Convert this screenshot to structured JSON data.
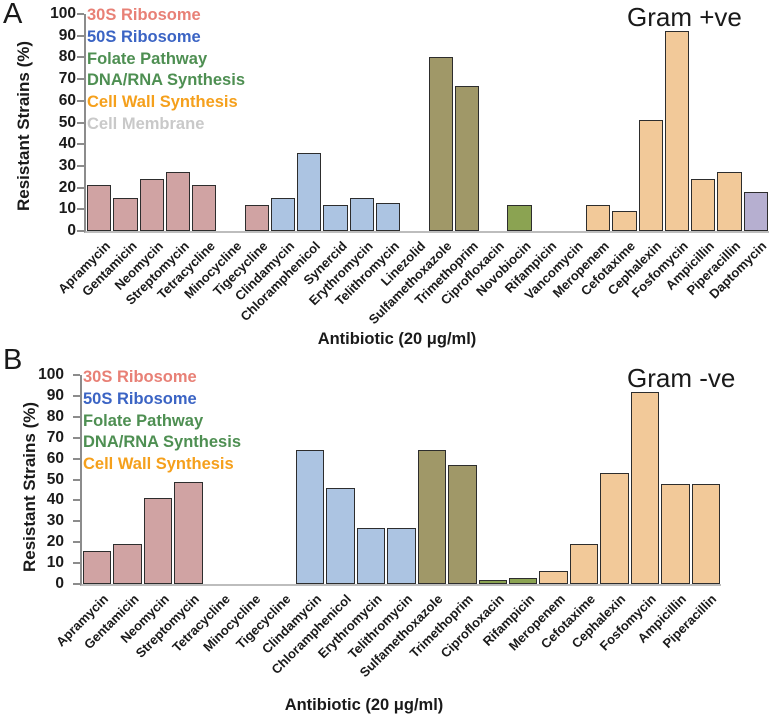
{
  "colors": {
    "bar_fill": {
      "30S Ribosome": "#d0a3a3",
      "50S Ribosome": "#acc4e2",
      "Folate Pathway": "#a09868",
      "DNA/RNA Synthesis": "#8ba352",
      "Cell Wall Synthesis": "#f2c999",
      "Cell Membrane": "#b6afd0"
    },
    "bar_border": "#2d2d2d",
    "axis": "#8c8c8c",
    "text": "#1a1a1a"
  },
  "chart_data": [
    {
      "type": "bar",
      "panel_label": "A",
      "title": "Gram +ve",
      "xlabel": "Antibiotic (20 μg/ml)",
      "ylabel": "Resistant Strains (%)",
      "ylim": [
        0,
        100
      ],
      "ytick_step": 10,
      "grid": false,
      "legend_position": "top-left",
      "legend": [
        {
          "label": "30S Ribosome",
          "color": "#e88076"
        },
        {
          "label": "50S Ribosome",
          "color": "#3b64c4"
        },
        {
          "label": "Folate Pathway",
          "color": "#4e8f52"
        },
        {
          "label": "DNA/RNA Synthesis",
          "color": "#4e8f52"
        },
        {
          "label": "Cell Wall Synthesis",
          "color": "#f5a01c"
        },
        {
          "label": "Cell Membrane",
          "color": "#c9c9c9"
        }
      ],
      "categories": [
        "Apramycin",
        "Gentamicin",
        "Neomycin",
        "Streptomycin",
        "Tetracycline",
        "Minocycline",
        "Tigecycline",
        "Clindamycin",
        "Chloramphenicol",
        "Synercid",
        "Erythromycin",
        "Telithromycin",
        "Linezolid",
        "Sulfamethoxazole",
        "Trimethoprim",
        "Ciprofloxacin",
        "Novobiocin",
        "Rifampicin",
        "Vancomycin",
        "Meropenem",
        "Cefotaxime",
        "Cephalexin",
        "Fosfomycin",
        "Ampicillin",
        "Piperacillin",
        "Daptomycin"
      ],
      "values": [
        21,
        15,
        24,
        27,
        21,
        0,
        12,
        15,
        36,
        12,
        15,
        13,
        0,
        80,
        67,
        0,
        12,
        0,
        0,
        12,
        9,
        51,
        92,
        24,
        27,
        18
      ],
      "groups": [
        "30S Ribosome",
        "30S Ribosome",
        "30S Ribosome",
        "30S Ribosome",
        "30S Ribosome",
        "30S Ribosome",
        "30S Ribosome",
        "50S Ribosome",
        "50S Ribosome",
        "50S Ribosome",
        "50S Ribosome",
        "50S Ribosome",
        "50S Ribosome",
        "Folate Pathway",
        "Folate Pathway",
        "DNA/RNA Synthesis",
        "DNA/RNA Synthesis",
        "DNA/RNA Synthesis",
        "Cell Wall Synthesis",
        "Cell Wall Synthesis",
        "Cell Wall Synthesis",
        "Cell Wall Synthesis",
        "Cell Wall Synthesis",
        "Cell Wall Synthesis",
        "Cell Wall Synthesis",
        "Cell Membrane"
      ]
    },
    {
      "type": "bar",
      "panel_label": "B",
      "title": "Gram -ve",
      "xlabel": "Antibiotic (20 μg/ml)",
      "ylabel": "Resistant Strains (%)",
      "ylim": [
        0,
        100
      ],
      "ytick_step": 10,
      "grid": false,
      "legend_position": "top-left",
      "legend": [
        {
          "label": "30S Ribosome",
          "color": "#e88076"
        },
        {
          "label": "50S Ribosome",
          "color": "#3b64c4"
        },
        {
          "label": "Folate Pathway",
          "color": "#4e8f52"
        },
        {
          "label": "DNA/RNA Synthesis",
          "color": "#4e8f52"
        },
        {
          "label": "Cell Wall Synthesis",
          "color": "#f5a01c"
        }
      ],
      "categories": [
        "Apramycin",
        "Gentamicin",
        "Neomycin",
        "Streptomycin",
        "Tetracycline",
        "Minocycline",
        "Tigecycline",
        "Clindamycin",
        "Chloramphenicol",
        "Erythromycin",
        "Telithromycin",
        "Sulfamethoxazole",
        "Trimethoprim",
        "Ciprofloxacin",
        "Rifampicin",
        "Meropenem",
        "Cefotaxime",
        "Cephalexin",
        "Fosfomycin",
        "Ampicillin",
        "Piperacillin"
      ],
      "values": [
        16,
        19,
        41,
        49,
        0,
        0,
        0,
        64,
        46,
        27,
        27,
        64,
        57,
        2,
        3,
        6,
        19,
        53,
        92,
        48,
        48
      ],
      "groups": [
        "30S Ribosome",
        "30S Ribosome",
        "30S Ribosome",
        "30S Ribosome",
        "30S Ribosome",
        "30S Ribosome",
        "30S Ribosome",
        "50S Ribosome",
        "50S Ribosome",
        "50S Ribosome",
        "50S Ribosome",
        "Folate Pathway",
        "Folate Pathway",
        "DNA/RNA Synthesis",
        "DNA/RNA Synthesis",
        "Cell Wall Synthesis",
        "Cell Wall Synthesis",
        "Cell Wall Synthesis",
        "Cell Wall Synthesis",
        "Cell Wall Synthesis",
        "Cell Wall Synthesis"
      ]
    }
  ]
}
